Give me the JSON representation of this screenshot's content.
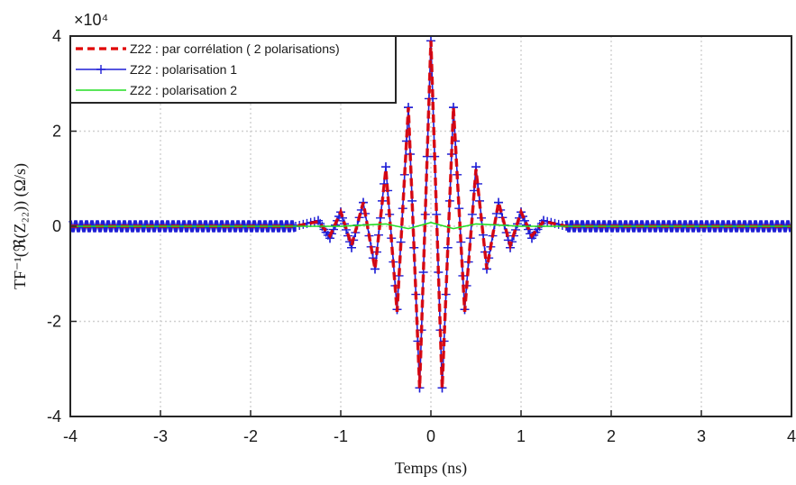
{
  "chart_data": {
    "type": "line",
    "xlabel": "Temps (ns)",
    "ylabel": "TF⁻¹(ℜ(Z₂₂)) (Ω/s)",
    "y_exponent_label": "×10⁴",
    "xlim": [
      -4,
      4
    ],
    "ylim": [
      -4,
      4
    ],
    "y_scale_factor": 10000,
    "x_ticks": [
      -4,
      -3,
      -2,
      -1,
      0,
      1,
      2,
      3,
      4
    ],
    "x_tick_labels": [
      "-4",
      "-3",
      "-2",
      "-1",
      "0",
      "1",
      "2",
      "3",
      "4"
    ],
    "y_ticks": [
      -4,
      -2,
      0,
      2,
      4
    ],
    "y_tick_labels": [
      "-4",
      "-2",
      "0",
      "2",
      "4"
    ],
    "grid": true,
    "legend_position": "top-left",
    "series": [
      {
        "name": "Z22 : par corrélation ( 2 polarisations)",
        "color": "#e00000",
        "style": "dashed",
        "x": [
          -4.0,
          -1.5,
          -1.25,
          -1.12,
          -1.0,
          -0.88,
          -0.75,
          -0.62,
          -0.5,
          -0.375,
          -0.25,
          -0.125,
          0.0,
          0.125,
          0.25,
          0.375,
          0.5,
          0.62,
          0.75,
          0.88,
          1.0,
          1.12,
          1.25,
          1.5,
          4.0
        ],
        "values": [
          0.0,
          0.0,
          0.1,
          -0.2,
          0.3,
          -0.4,
          0.5,
          -0.9,
          1.2,
          -1.8,
          2.5,
          -3.4,
          3.9,
          -3.4,
          2.5,
          -1.8,
          1.2,
          -0.9,
          0.5,
          -0.4,
          0.3,
          -0.2,
          0.1,
          0.0,
          0.0
        ]
      },
      {
        "name": "Z22 : polarisation 1",
        "color": "#1f1fd6",
        "style": "solid-plus-markers",
        "x": [
          -4.0,
          -1.5,
          -1.25,
          -1.12,
          -1.0,
          -0.88,
          -0.75,
          -0.62,
          -0.5,
          -0.375,
          -0.25,
          -0.125,
          0.0,
          0.125,
          0.25,
          0.375,
          0.5,
          0.62,
          0.75,
          0.88,
          1.0,
          1.12,
          1.25,
          1.5,
          4.0
        ],
        "values": [
          0.0,
          0.0,
          0.12,
          -0.25,
          0.3,
          -0.45,
          0.5,
          -0.9,
          1.25,
          -1.75,
          2.5,
          -3.4,
          3.9,
          -3.4,
          2.5,
          -1.75,
          1.25,
          -0.9,
          0.5,
          -0.45,
          0.3,
          -0.25,
          0.12,
          0.0,
          0.0
        ],
        "baseline_band": 0.12
      },
      {
        "name": "Z22 : polarisation 2",
        "color": "#22dd22",
        "style": "solid",
        "x": [
          -4.0,
          -1.0,
          -0.5,
          -0.25,
          0.0,
          0.25,
          0.5,
          1.0,
          4.0
        ],
        "values": [
          0.0,
          0.0,
          0.05,
          -0.05,
          0.08,
          -0.05,
          0.05,
          0.0,
          0.0
        ]
      }
    ]
  }
}
